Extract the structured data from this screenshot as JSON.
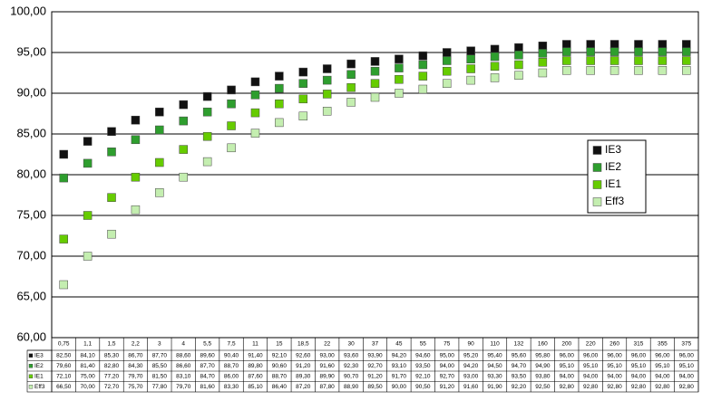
{
  "chart_data": {
    "type": "scatter",
    "categories": [
      "0,75",
      "1,1",
      "1,5",
      "2,2",
      "3",
      "4",
      "5,5",
      "7,5",
      "11",
      "15",
      "18,5",
      "22",
      "30",
      "37",
      "45",
      "55",
      "75",
      "90",
      "110",
      "132",
      "160",
      "200",
      "220",
      "260",
      "315",
      "355",
      "375"
    ],
    "series": [
      {
        "name": "IE3",
        "color": "#111111",
        "values": [
          82.5,
          84.1,
          85.3,
          86.7,
          87.7,
          88.6,
          89.6,
          90.4,
          91.4,
          92.1,
          92.6,
          93.0,
          93.6,
          93.9,
          94.2,
          94.6,
          95.0,
          95.2,
          95.4,
          95.6,
          95.8,
          96.0,
          96.0,
          96.0,
          96.0,
          96.0,
          96.0
        ],
        "value_labels": [
          "82,50",
          "84,10",
          "85,30",
          "86,70",
          "87,70",
          "88,60",
          "89,60",
          "90,40",
          "91,40",
          "92,10",
          "92,60",
          "93,00",
          "93,60",
          "93,90",
          "94,20",
          "94,60",
          "95,00",
          "95,20",
          "95,40",
          "95,60",
          "95,80",
          "96,00",
          "96,00",
          "96,00",
          "96,00",
          "96,00",
          "96,00"
        ]
      },
      {
        "name": "IE2",
        "color": "#2e9e2e",
        "values": [
          79.6,
          81.4,
          82.8,
          84.3,
          85.5,
          86.6,
          87.7,
          88.7,
          89.8,
          90.6,
          91.2,
          91.6,
          92.3,
          92.7,
          93.1,
          93.5,
          94.0,
          94.2,
          94.5,
          94.7,
          94.9,
          95.1,
          95.1,
          95.1,
          95.1,
          95.1,
          95.1
        ],
        "value_labels": [
          "79,60",
          "81,40",
          "82,80",
          "84,30",
          "85,50",
          "86,60",
          "87,70",
          "88,70",
          "89,80",
          "90,60",
          "91,20",
          "91,60",
          "92,30",
          "92,70",
          "93,10",
          "93,50",
          "94,00",
          "94,20",
          "94,50",
          "94,70",
          "94,90",
          "95,10",
          "95,10",
          "95,10",
          "95,10",
          "95,10",
          "95,10"
        ]
      },
      {
        "name": "IE1",
        "color": "#66cc00",
        "values": [
          72.1,
          75.0,
          77.2,
          79.7,
          81.5,
          83.1,
          84.7,
          86.0,
          87.6,
          88.7,
          89.3,
          89.9,
          90.7,
          91.2,
          91.7,
          92.1,
          92.7,
          93.0,
          93.3,
          93.5,
          93.8,
          94.0,
          94.0,
          94.0,
          94.0,
          94.0,
          94.0
        ],
        "value_labels": [
          "72,10",
          "75,00",
          "77,20",
          "79,70",
          "81,50",
          "83,10",
          "84,70",
          "86,00",
          "87,60",
          "88,70",
          "89,30",
          "89,90",
          "90,70",
          "91,20",
          "91,70",
          "92,10",
          "92,70",
          "93,00",
          "93,30",
          "93,50",
          "93,80",
          "94,00",
          "94,00",
          "94,00",
          "94,00",
          "94,00",
          "94,00"
        ]
      },
      {
        "name": "Eff3",
        "color": "#c4eeb0",
        "values": [
          66.5,
          70.0,
          72.7,
          75.7,
          77.8,
          79.7,
          81.6,
          83.3,
          85.1,
          86.4,
          87.2,
          87.8,
          88.9,
          89.5,
          90.0,
          90.5,
          91.2,
          91.6,
          91.9,
          92.2,
          92.5,
          92.8,
          92.8,
          92.8,
          92.8,
          92.8,
          92.8
        ],
        "value_labels": [
          "66,50",
          "70,00",
          "72,70",
          "75,70",
          "77,80",
          "79,70",
          "81,60",
          "83,30",
          "85,10",
          "86,40",
          "87,20",
          "87,80",
          "88,90",
          "89,50",
          "90,00",
          "90,50",
          "91,20",
          "91,60",
          "91,90",
          "92,20",
          "92,50",
          "92,80",
          "92,80",
          "92,80",
          "92,80",
          "92,80",
          "92,80"
        ]
      }
    ],
    "ylim": [
      60,
      100
    ],
    "yticks": [
      {
        "value": 60,
        "label": "60,00"
      },
      {
        "value": 65,
        "label": "65,00"
      },
      {
        "value": 70,
        "label": "70,00"
      },
      {
        "value": 75,
        "label": "75,00"
      },
      {
        "value": 80,
        "label": "80,00"
      },
      {
        "value": 85,
        "label": "85,00"
      },
      {
        "value": 90,
        "label": "90,00"
      },
      {
        "value": 95,
        "label": "95,00"
      },
      {
        "value": 100,
        "label": "100,00"
      }
    ],
    "grid": true,
    "legend": "right"
  }
}
